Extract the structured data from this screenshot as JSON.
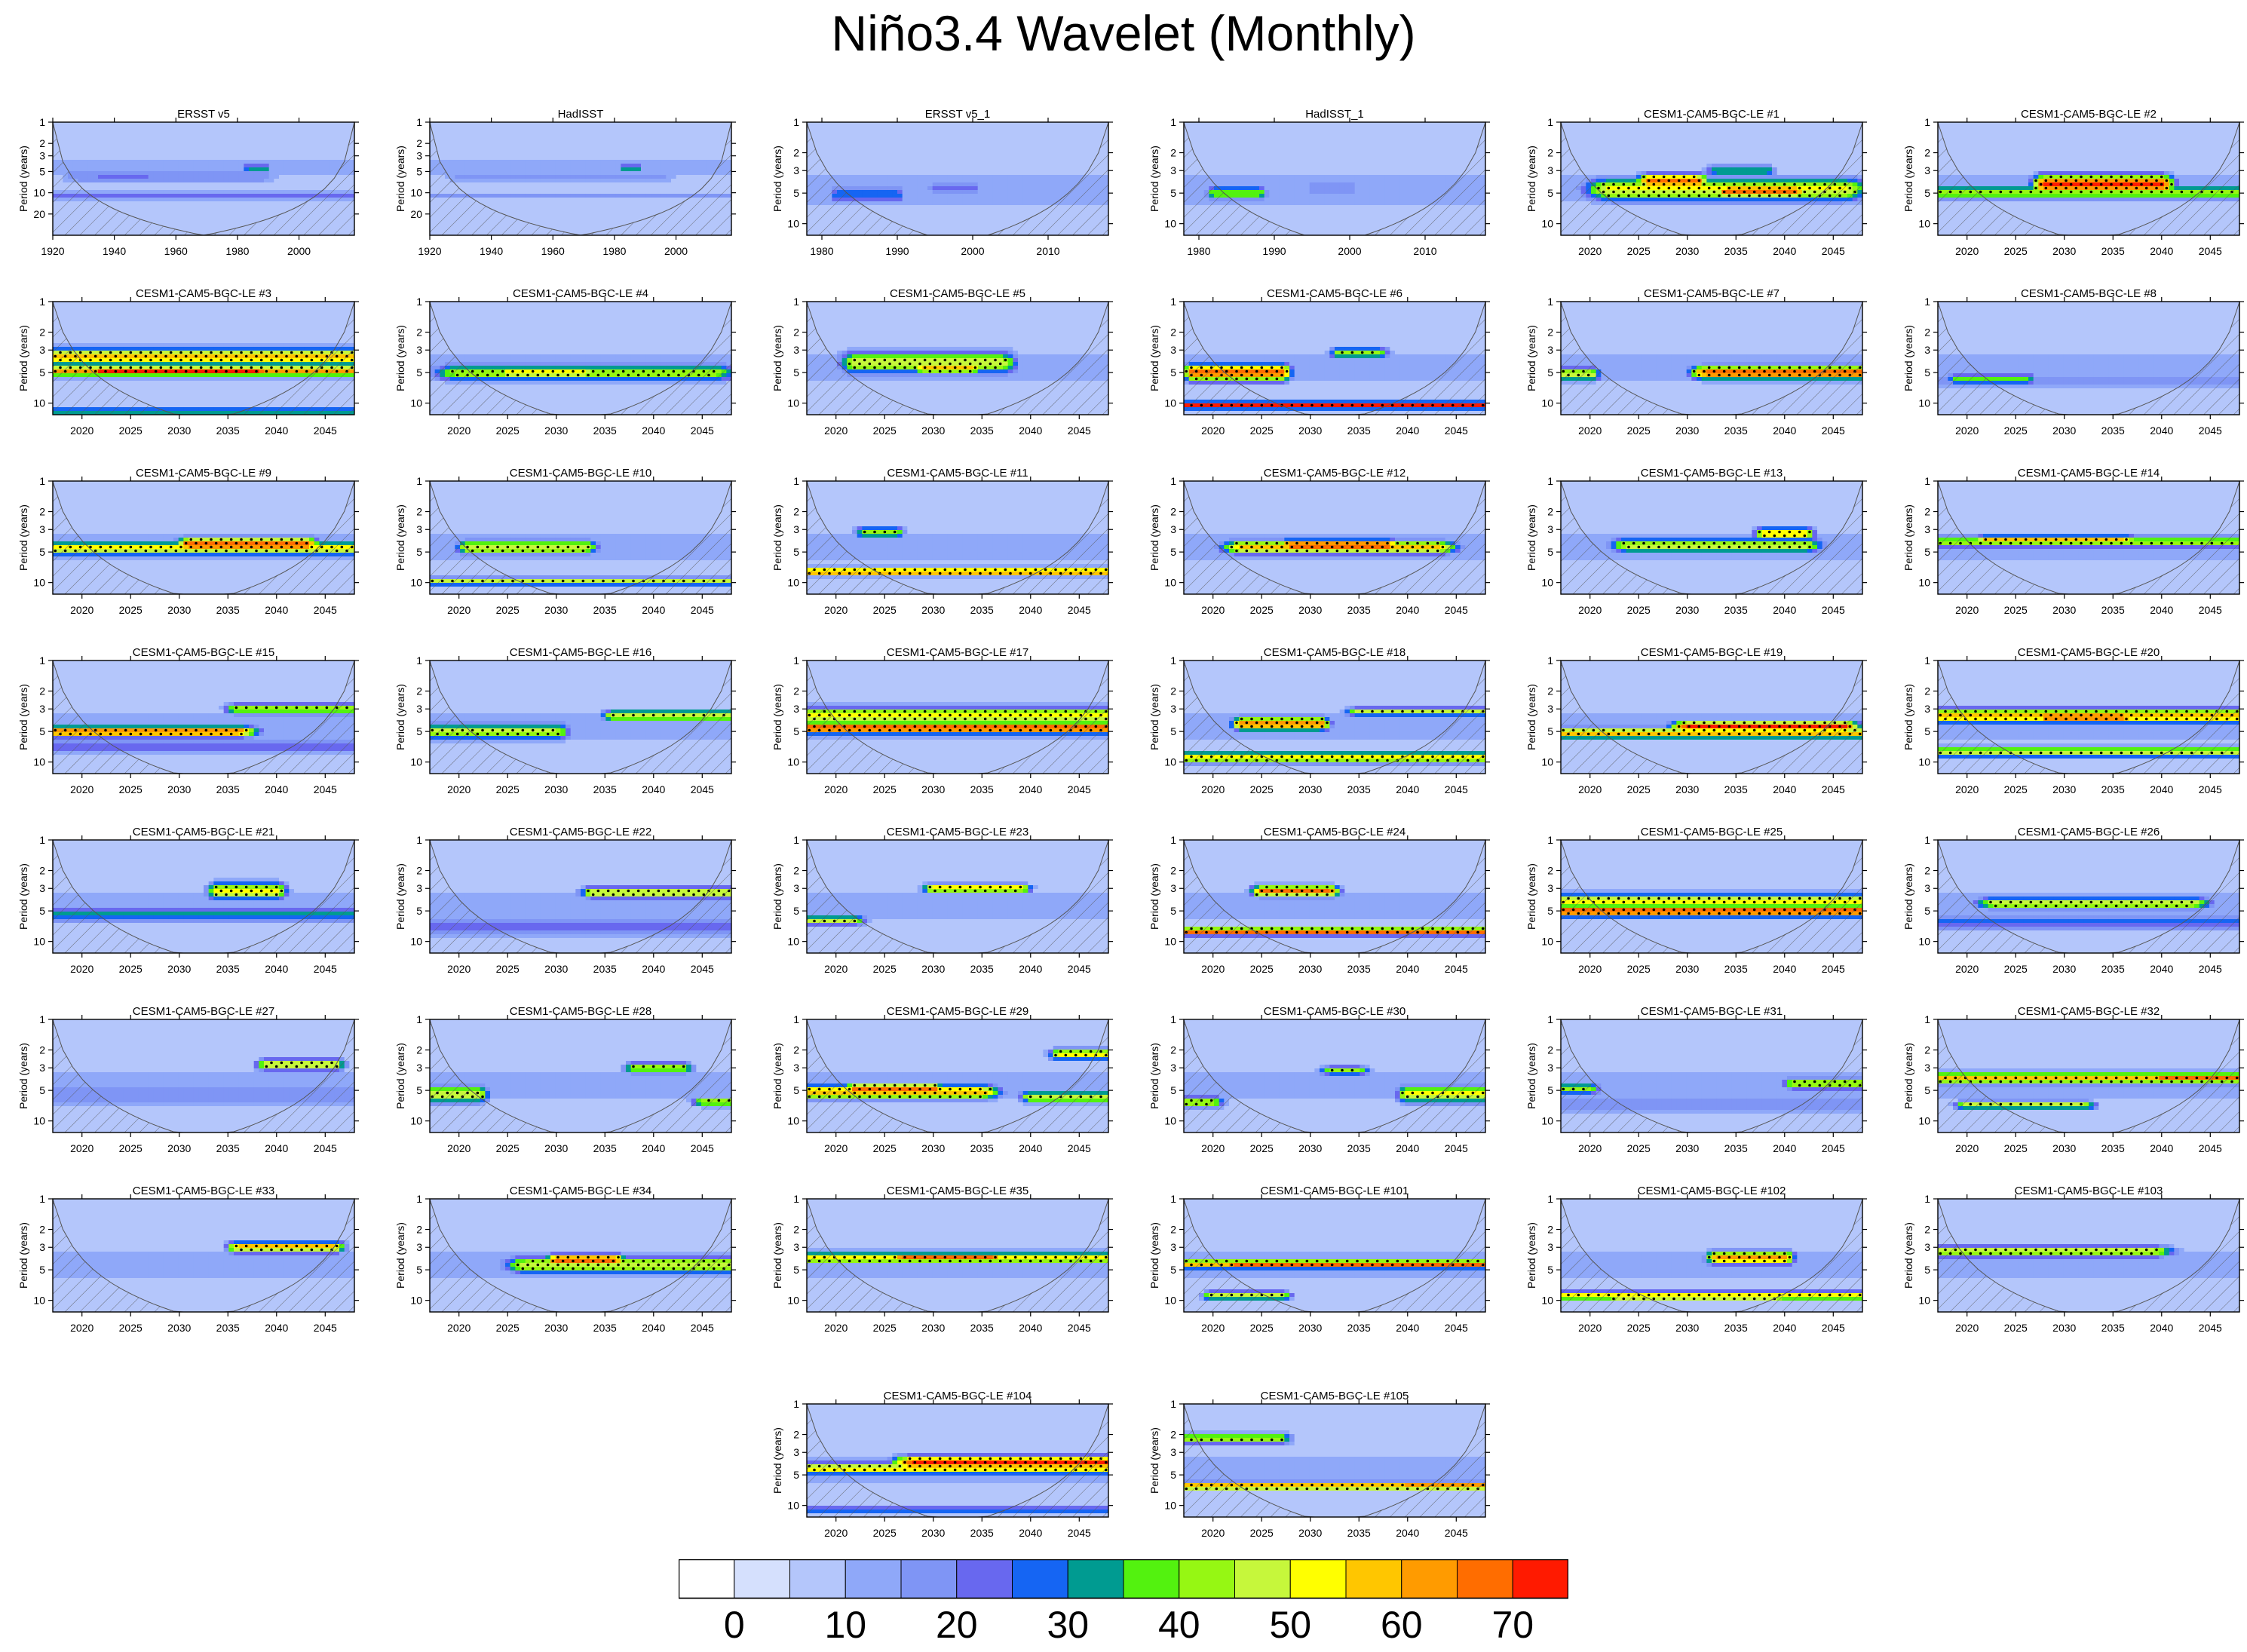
{
  "figure": {
    "title": "Niño3.4 Wavelet (Monthly)"
  },
  "chart_data": {
    "type": "heatmap",
    "title": "Niño3.4 Wavelet (Monthly)",
    "ylabel": "Period (years)",
    "colorbar": {
      "levels": [
        0,
        5,
        10,
        15,
        20,
        25,
        30,
        35,
        40,
        45,
        50,
        55,
        60,
        65,
        70
      ],
      "tick_labels": [
        "0",
        "10",
        "20",
        "30",
        "40",
        "50",
        "60",
        "70"
      ],
      "tick_values": [
        0,
        10,
        20,
        30,
        40,
        50,
        60,
        70
      ],
      "colors": [
        "#ffffff",
        "#d5e0fd",
        "#b4c6fb",
        "#8fa8f9",
        "#7f95f5",
        "#6868ef",
        "#1565f3",
        "#009b91",
        "#53f20f",
        "#96f713",
        "#c6f73b",
        "#ffff00",
        "#ffc600",
        "#ff9b00",
        "#ff6d00",
        "#ff1a00"
      ]
    },
    "panel_types": {
      "obs_long": {
        "xlim": [
          1920,
          2018
        ],
        "xticks": [
          1920,
          1940,
          1960,
          1980,
          2000
        ],
        "yticks": [
          1,
          2,
          3,
          5,
          10,
          20
        ],
        "ylim": [
          1,
          40
        ]
      },
      "obs_short": {
        "xlim": [
          1978,
          2018
        ],
        "xticks": [
          1980,
          1990,
          2000,
          2010
        ],
        "yticks": [
          1,
          2,
          3,
          5,
          10
        ],
        "ylim": [
          1,
          13
        ]
      },
      "model": {
        "xlim": [
          2017,
          2048
        ],
        "xticks": [
          2020,
          2025,
          2030,
          2035,
          2040,
          2045
        ],
        "yticks": [
          1,
          2,
          3,
          5,
          10
        ],
        "ylim": [
          1,
          13
        ]
      }
    },
    "panels": [
      {
        "title": "ERSST v5",
        "kind": "obs_long",
        "features": [
          [
            1928,
            1988,
            5.8,
            0.25,
            18
          ],
          [
            1935,
            1950,
            6.2,
            0.15,
            22
          ],
          [
            1983,
            1990,
            4.5,
            0.1,
            32
          ],
          [
            1920,
            2018,
            11,
            0.1,
            22
          ]
        ]
      },
      {
        "title": "HadISST",
        "kind": "obs_long",
        "features": [
          [
            1930,
            1995,
            5.8,
            0.25,
            16
          ],
          [
            1983,
            1988,
            4.5,
            0.1,
            34
          ],
          [
            1920,
            2018,
            11,
            0.1,
            20
          ]
        ]
      },
      {
        "title": "ERSST v5_1",
        "kind": "obs_short",
        "features": [
          [
            1982,
            1990,
            5.2,
            0.15,
            28
          ],
          [
            1995,
            2000,
            4.5,
            0.15,
            22
          ],
          [
            1978,
            2018,
            5.5,
            0.2,
            14
          ]
        ]
      },
      {
        "title": "HadISST_1",
        "kind": "obs_short",
        "features": [
          [
            1982,
            1988,
            5.0,
            0.12,
            40
          ],
          [
            1995,
            2000,
            4.5,
            0.15,
            20
          ],
          [
            1978,
            2018,
            5.5,
            0.2,
            14
          ]
        ]
      },
      {
        "title": "CESM1-CAM5-BGC-LE #1",
        "kind": "model",
        "features": [
          [
            2022,
            2046,
            4.6,
            0.2,
            52
          ],
          [
            2026,
            2031,
            3.8,
            0.12,
            70
          ],
          [
            2034,
            2041,
            4.8,
            0.12,
            68
          ],
          [
            2033,
            2038,
            3.0,
            0.1,
            36
          ]
        ]
      },
      {
        "title": "CESM1-CAM5-BGC-LE #2",
        "kind": "model",
        "features": [
          [
            2017,
            2048,
            4.9,
            0.12,
            44
          ],
          [
            2028,
            2040,
            4.1,
            0.17,
            72
          ]
        ]
      },
      {
        "title": "CESM1-CAM5-BGC-LE #3",
        "kind": "model",
        "features": [
          [
            2017,
            2048,
            4.8,
            0.1,
            62
          ],
          [
            2017,
            2048,
            3.5,
            0.15,
            60
          ],
          [
            2022,
            2038,
            4.8,
            0.08,
            72
          ],
          [
            2017,
            2048,
            12,
            0.08,
            34
          ]
        ]
      },
      {
        "title": "CESM1-CAM5-BGC-LE #4",
        "kind": "model",
        "features": [
          [
            2020,
            2046,
            5.0,
            0.15,
            44
          ],
          [
            2025,
            2033,
            5.0,
            0.1,
            54
          ]
        ]
      },
      {
        "title": "CESM1-CAM5-BGC-LE #5",
        "kind": "model",
        "features": [
          [
            2022,
            2037,
            4.0,
            0.2,
            48
          ],
          [
            2029,
            2034,
            4.5,
            0.1,
            58
          ]
        ]
      },
      {
        "title": "CESM1-CAM5-BGC-LE #6",
        "kind": "model",
        "features": [
          [
            2017,
            2048,
            10.5,
            0.06,
            72
          ],
          [
            2018,
            2027,
            5.0,
            0.15,
            70
          ],
          [
            2033,
            2037,
            3.2,
            0.1,
            44
          ]
        ]
      },
      {
        "title": "CESM1-CAM5-BGC-LE #7",
        "kind": "model",
        "features": [
          [
            2032,
            2048,
            5.0,
            0.12,
            68
          ],
          [
            2017,
            2020,
            5.2,
            0.12,
            50
          ]
        ]
      },
      {
        "title": "CESM1-CAM5-BGC-LE #8",
        "kind": "model",
        "features": [
          [
            2019,
            2026,
            5.8,
            0.1,
            38
          ],
          [
            2017,
            2048,
            6,
            0.2,
            16
          ]
        ]
      },
      {
        "title": "CESM1-CAM5-BGC-LE #9",
        "kind": "model",
        "features": [
          [
            2017,
            2048,
            4.6,
            0.12,
            52
          ],
          [
            2031,
            2043,
            4.2,
            0.12,
            70
          ]
        ]
      },
      {
        "title": "CESM1-CAM5-BGC-LE #10",
        "kind": "model",
        "features": [
          [
            2017,
            2048,
            9.8,
            0.07,
            48
          ],
          [
            2021,
            2033,
            4.5,
            0.12,
            50
          ]
        ]
      },
      {
        "title": "CESM1-CAM5-BGC-LE #11",
        "kind": "model",
        "features": [
          [
            2017,
            2048,
            7.8,
            0.07,
            66
          ],
          [
            2023,
            2026,
            3.2,
            0.1,
            44
          ]
        ]
      },
      {
        "title": "CESM1-CAM5-BGC-LE #12",
        "kind": "model",
        "features": [
          [
            2023,
            2043,
            4.5,
            0.12,
            58
          ],
          [
            2028,
            2038,
            4.3,
            0.1,
            70
          ]
        ]
      },
      {
        "title": "CESM1-CAM5-BGC-LE #13",
        "kind": "model",
        "features": [
          [
            2024,
            2042,
            4.3,
            0.13,
            48
          ],
          [
            2038,
            2042,
            3.3,
            0.1,
            58
          ]
        ]
      },
      {
        "title": "CESM1-CAM5-BGC-LE #14",
        "kind": "model",
        "features": [
          [
            2017,
            2048,
            4.0,
            0.1,
            46
          ],
          [
            2022,
            2036,
            3.8,
            0.08,
            56
          ]
        ]
      },
      {
        "title": "CESM1-CAM5-BGC-LE #15",
        "kind": "model",
        "features": [
          [
            2017,
            2036,
            5.0,
            0.1,
            66
          ],
          [
            2036,
            2048,
            3.0,
            0.1,
            46
          ],
          [
            2017,
            2048,
            7,
            0.15,
            24
          ]
        ]
      },
      {
        "title": "CESM1-CAM5-BGC-LE #16",
        "kind": "model",
        "features": [
          [
            2017,
            2030,
            5.0,
            0.15,
            46
          ],
          [
            2036,
            2048,
            3.5,
            0.1,
            50
          ]
        ]
      },
      {
        "title": "CESM1-CAM5-BGC-LE #17",
        "kind": "model",
        "features": [
          [
            2017,
            2048,
            4.6,
            0.1,
            72
          ],
          [
            2017,
            2048,
            3.5,
            0.15,
            52
          ]
        ]
      },
      {
        "title": "CESM1-CAM5-BGC-LE #18",
        "kind": "model",
        "features": [
          [
            2017,
            2048,
            9.0,
            0.1,
            52
          ],
          [
            2023,
            2031,
            4.2,
            0.12,
            66
          ],
          [
            2035,
            2048,
            3.2,
            0.08,
            46
          ]
        ]
      },
      {
        "title": "CESM1-CAM5-BGC-LE #19",
        "kind": "model",
        "features": [
          [
            2017,
            2048,
            5.2,
            0.1,
            60
          ],
          [
            2030,
            2046,
            4.5,
            0.1,
            72
          ]
        ]
      },
      {
        "title": "CESM1-CAM5-BGC-LE #20",
        "kind": "model",
        "features": [
          [
            2017,
            2048,
            3.5,
            0.13,
            60
          ],
          [
            2028,
            2036,
            3.6,
            0.08,
            72
          ],
          [
            2017,
            2048,
            8,
            0.1,
            46
          ]
        ]
      },
      {
        "title": "CESM1-CAM5-BGC-LE #21",
        "kind": "model",
        "features": [
          [
            2034,
            2040,
            3.2,
            0.15,
            54
          ],
          [
            2017,
            2048,
            5.5,
            0.13,
            32
          ]
        ]
      },
      {
        "title": "CESM1-CAM5-BGC-LE #22",
        "kind": "model",
        "features": [
          [
            2034,
            2048,
            3.3,
            0.1,
            54
          ],
          [
            2017,
            2048,
            7,
            0.2,
            22
          ]
        ]
      },
      {
        "title": "CESM1-CAM5-BGC-LE #23",
        "kind": "model",
        "features": [
          [
            2030,
            2039,
            3.0,
            0.08,
            56
          ],
          [
            2017,
            2022,
            6.2,
            0.08,
            46
          ]
        ]
      },
      {
        "title": "CESM1-CAM5-BGC-LE #24",
        "kind": "model",
        "features": [
          [
            2017,
            2048,
            8.0,
            0.07,
            68
          ],
          [
            2025,
            2032,
            3.2,
            0.1,
            66
          ]
        ]
      },
      {
        "title": "CESM1-CAM5-BGC-LE #25",
        "kind": "model",
        "features": [
          [
            2017,
            2048,
            5.0,
            0.1,
            72
          ],
          [
            2017,
            2048,
            4.0,
            0.13,
            54
          ]
        ]
      },
      {
        "title": "CESM1-CAM5-BGC-LE #26",
        "kind": "model",
        "features": [
          [
            2023,
            2043,
            4.2,
            0.1,
            50
          ],
          [
            2017,
            2048,
            6.5,
            0.15,
            26
          ]
        ]
      },
      {
        "title": "CESM1-CAM5-BGC-LE #27",
        "kind": "model",
        "features": [
          [
            2039,
            2046,
            2.8,
            0.1,
            52
          ],
          [
            2017,
            2048,
            5.5,
            0.2,
            20
          ]
        ]
      },
      {
        "title": "CESM1-CAM5-BGC-LE #28",
        "kind": "model",
        "features": [
          [
            2017,
            2022,
            5.5,
            0.15,
            50
          ],
          [
            2038,
            2043,
            3.0,
            0.1,
            46
          ],
          [
            2045,
            2048,
            6.5,
            0.08,
            46
          ]
        ]
      },
      {
        "title": "CESM1-CAM5-BGC-LE #29",
        "kind": "model",
        "features": [
          [
            2017,
            2035,
            5.2,
            0.12,
            60
          ],
          [
            2022,
            2030,
            4.8,
            0.08,
            70
          ],
          [
            2043,
            2048,
            2.2,
            0.1,
            54
          ],
          [
            2040,
            2048,
            5.8,
            0.1,
            50
          ]
        ]
      },
      {
        "title": "CESM1-CAM5-BGC-LE #30",
        "kind": "model",
        "features": [
          [
            2040,
            2048,
            5.5,
            0.15,
            52
          ],
          [
            2017,
            2020,
            6.5,
            0.1,
            46
          ],
          [
            2032,
            2035,
            3.2,
            0.08,
            42
          ]
        ]
      },
      {
        "title": "CESM1-CAM5-BGC-LE #31",
        "kind": "model",
        "features": [
          [
            2041,
            2048,
            4.3,
            0.1,
            48
          ],
          [
            2017,
            2020,
            4.8,
            0.1,
            42
          ],
          [
            2017,
            2048,
            7,
            0.15,
            20
          ]
        ]
      },
      {
        "title": "CESM1-CAM5-BGC-LE #32",
        "kind": "model",
        "features": [
          [
            2017,
            2048,
            3.8,
            0.1,
            58
          ],
          [
            2040,
            2048,
            3.8,
            0.08,
            70
          ],
          [
            2020,
            2032,
            7.0,
            0.08,
            48
          ]
        ]
      },
      {
        "title": "CESM1-CAM5-BGC-LE #33",
        "kind": "model",
        "features": [
          [
            2036,
            2046,
            3.0,
            0.1,
            58
          ],
          [
            2039,
            2044,
            3.0,
            0.06,
            68
          ]
        ]
      },
      {
        "title": "CESM1-CAM5-BGC-LE #34",
        "kind": "model",
        "features": [
          [
            2027,
            2048,
            4.5,
            0.15,
            50
          ],
          [
            2030,
            2036,
            4.0,
            0.1,
            68
          ]
        ]
      },
      {
        "title": "CESM1-CAM5-BGC-LE #35",
        "kind": "model",
        "features": [
          [
            2017,
            2048,
            3.8,
            0.1,
            54
          ],
          [
            2027,
            2036,
            3.8,
            0.08,
            70
          ]
        ]
      },
      {
        "title": "CESM1-CAM5-BGC-LE #101",
        "kind": "model",
        "features": [
          [
            2017,
            2048,
            4.4,
            0.08,
            60
          ],
          [
            2023,
            2048,
            4.5,
            0.06,
            70
          ],
          [
            2020,
            2027,
            9.0,
            0.08,
            50
          ]
        ]
      },
      {
        "title": "CESM1-CAM5-BGC-LE #102",
        "kind": "model",
        "features": [
          [
            2017,
            2048,
            9.0,
            0.08,
            52
          ],
          [
            2023,
            2039,
            9.3,
            0.05,
            62
          ],
          [
            2033,
            2040,
            3.8,
            0.12,
            62
          ]
        ]
      },
      {
        "title": "CESM1-CAM5-BGC-LE #103",
        "kind": "model",
        "features": [
          [
            2017,
            2039,
            3.3,
            0.1,
            50
          ]
        ]
      },
      {
        "title": "CESM1-CAM5-BGC-LE #104",
        "kind": "model",
        "features": [
          [
            2017,
            2048,
            4.3,
            0.1,
            56
          ],
          [
            2028,
            2048,
            3.8,
            0.12,
            72
          ],
          [
            2017,
            2048,
            11,
            0.05,
            36
          ]
        ]
      },
      {
        "title": "CESM1-CAM5-BGC-LE #105",
        "kind": "model",
        "features": [
          [
            2017,
            2048,
            6.5,
            0.07,
            66
          ],
          [
            2017,
            2027,
            2.2,
            0.1,
            44
          ],
          [
            2040,
            2048,
            6.5,
            0.06,
            72
          ]
        ]
      }
    ]
  }
}
